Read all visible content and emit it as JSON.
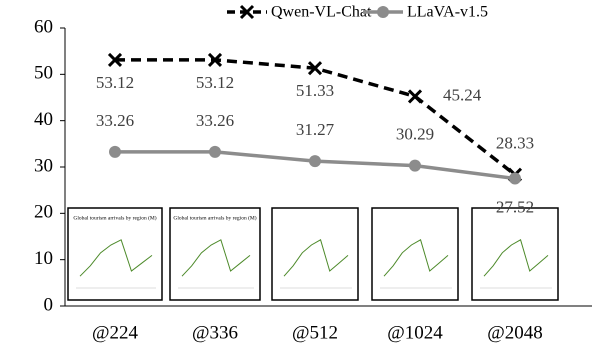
{
  "chart_data": {
    "type": "line",
    "categories": [
      "@224",
      "@336",
      "@512",
      "@1024",
      "@2048"
    ],
    "series": [
      {
        "name": "Qwen-VL-Chat",
        "color": "#000000",
        "values": [
          53.12,
          53.12,
          51.33,
          45.24,
          28.33
        ]
      },
      {
        "name": "LLaVA-v1.5",
        "color": "#8c8c8c",
        "values": [
          33.26,
          33.26,
          31.27,
          30.29,
          27.52
        ]
      }
    ],
    "ylim": [
      0,
      60
    ],
    "yticks": [
      0,
      10,
      20,
      30,
      40,
      50,
      60
    ],
    "legend": "top",
    "thumbnail_title": "Global tourism arrivals by region (M)"
  }
}
